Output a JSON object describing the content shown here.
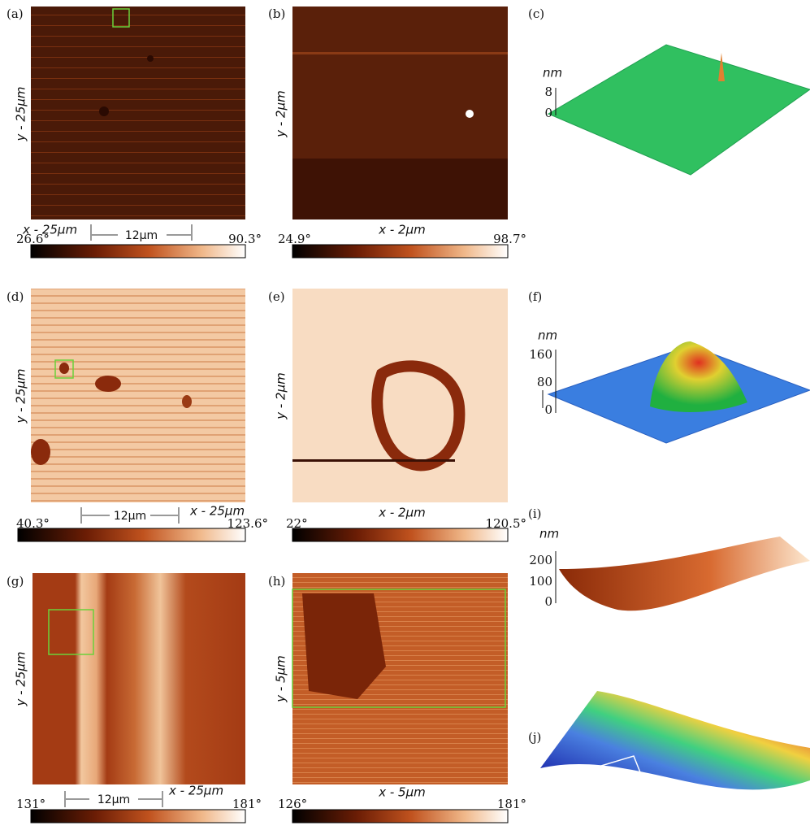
{
  "panels": [
    {
      "label": "(a)",
      "y_label": "y - 25μm",
      "x_label": "x - 25μm",
      "scale_bar": "12μm",
      "colorbar_min": "26.6°",
      "colorbar_max": "90.3°"
    },
    {
      "label": "(b)",
      "y_label": "y - 2μm",
      "x_label": "x - 2μm",
      "colorbar_min": "24.9°",
      "colorbar_max": "98.7°"
    },
    {
      "label": "(c)",
      "z_unit": "nm",
      "z_ticks": [
        8,
        0
      ]
    },
    {
      "label": "(d)",
      "y_label": "y - 25μm",
      "x_label": "x - 25μm",
      "scale_bar": "12μm",
      "colorbar_min": "40.3°",
      "colorbar_max": "123.6°"
    },
    {
      "label": "(e)",
      "y_label": "y - 2μm",
      "x_label": "x - 2μm",
      "colorbar_min": "22°",
      "colorbar_max": "120.5°"
    },
    {
      "label": "(f)",
      "z_unit": "nm",
      "z_ticks": [
        160,
        80,
        0
      ]
    },
    {
      "label": "(g)",
      "y_label": "y - 25μm",
      "x_label": "x - 25μm",
      "scale_bar": "12μm",
      "colorbar_min": "131°",
      "colorbar_max": "181°"
    },
    {
      "label": "(h)",
      "y_label": "y - 5μm",
      "x_label": "x - 5μm",
      "colorbar_min": "126°",
      "colorbar_max": "181°"
    },
    {
      "label": "(i)",
      "z_unit": "nm",
      "z_ticks": [
        200,
        100,
        0
      ]
    },
    {
      "label": "(j)"
    }
  ]
}
